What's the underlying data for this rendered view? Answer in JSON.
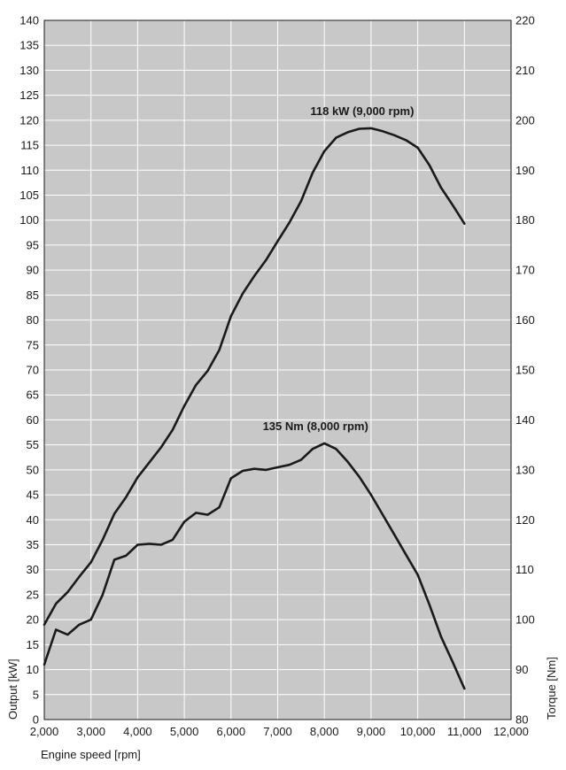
{
  "chart_data": {
    "type": "line",
    "title": "",
    "xlabel": "Engine speed [rpm]",
    "ylabel_left": "Output [kW]",
    "ylabel_right": "Torque [Nm]",
    "xlim": [
      2000,
      12000
    ],
    "ylim_left": [
      0,
      140
    ],
    "ylim_right": [
      80,
      220
    ],
    "x_ticks": [
      "2,000",
      "3,000",
      "4,000",
      "5,000",
      "6,000",
      "7,000",
      "8,000",
      "9,000",
      "10,000",
      "11,000",
      "12,000"
    ],
    "y_left_ticks": [
      "0",
      "5",
      "10",
      "15",
      "20",
      "25",
      "30",
      "35",
      "40",
      "45",
      "50",
      "55",
      "60",
      "65",
      "70",
      "75",
      "80",
      "85",
      "90",
      "95",
      "100",
      "105",
      "110",
      "115",
      "120",
      "125",
      "130",
      "135",
      "140"
    ],
    "y_right_ticks": [
      "80",
      "90",
      "100",
      "110",
      "120",
      "130",
      "140",
      "150",
      "160",
      "170",
      "180",
      "190",
      "200",
      "210",
      "220"
    ],
    "grid": true,
    "colors": {
      "plot_bg": "#c8c8c8",
      "grid": "#ffffff",
      "line": "#1a1a1a"
    },
    "series": [
      {
        "axis": "left",
        "x": [
          2000,
          2250,
          2500,
          2750,
          3000,
          3250,
          3500,
          3750,
          4000,
          4250,
          4500,
          4750,
          5000,
          5250,
          5500,
          5750,
          6000,
          6250,
          6500,
          6750,
          7000,
          7250,
          7500,
          7750,
          8000,
          8250,
          8500,
          8750,
          9000,
          9250,
          9500,
          9750,
          10000,
          10250,
          10500,
          10750,
          11000
        ],
        "values": [
          19,
          23.2,
          25.5,
          28.6,
          31.5,
          36,
          41.2,
          44.5,
          48.5,
          51.5,
          54.5,
          58,
          62.8,
          67,
          69.8,
          74,
          80.8,
          85.3,
          88.8,
          92,
          95.8,
          99.5,
          103.8,
          109.5,
          113.8,
          116.5,
          117.6,
          118.3,
          118.4,
          117.8,
          117,
          116,
          114.5,
          111,
          106.5,
          103,
          99.3
        ]
      },
      {
        "axis": "right",
        "x": [
          2000,
          2250,
          2500,
          2750,
          3000,
          3250,
          3500,
          3750,
          4000,
          4250,
          4500,
          4750,
          5000,
          5250,
          5500,
          5750,
          6000,
          6250,
          6500,
          6750,
          7000,
          7250,
          7500,
          7750,
          8000,
          8250,
          8500,
          8750,
          9000,
          9250,
          9500,
          9750,
          10000,
          10250,
          10500,
          10750,
          11000
        ],
        "values": [
          91,
          98,
          97,
          99,
          100,
          105,
          112,
          112.8,
          115,
          115.2,
          115,
          116,
          119.6,
          121.4,
          121,
          122.5,
          128.3,
          129.8,
          130.2,
          130,
          130.5,
          131,
          132,
          134.2,
          135.3,
          134.2,
          131.6,
          128.6,
          125,
          121,
          117,
          113,
          109,
          103,
          96.6,
          91.5,
          86.2
        ]
      }
    ],
    "annotations": [
      {
        "text": "118 kW (9,000 rpm)",
        "x": 9000,
        "axis": "left",
        "y": 118.4
      },
      {
        "text": "135 Nm (8,000 rpm)",
        "x": 8000,
        "axis": "right",
        "y": 135.3
      }
    ]
  }
}
